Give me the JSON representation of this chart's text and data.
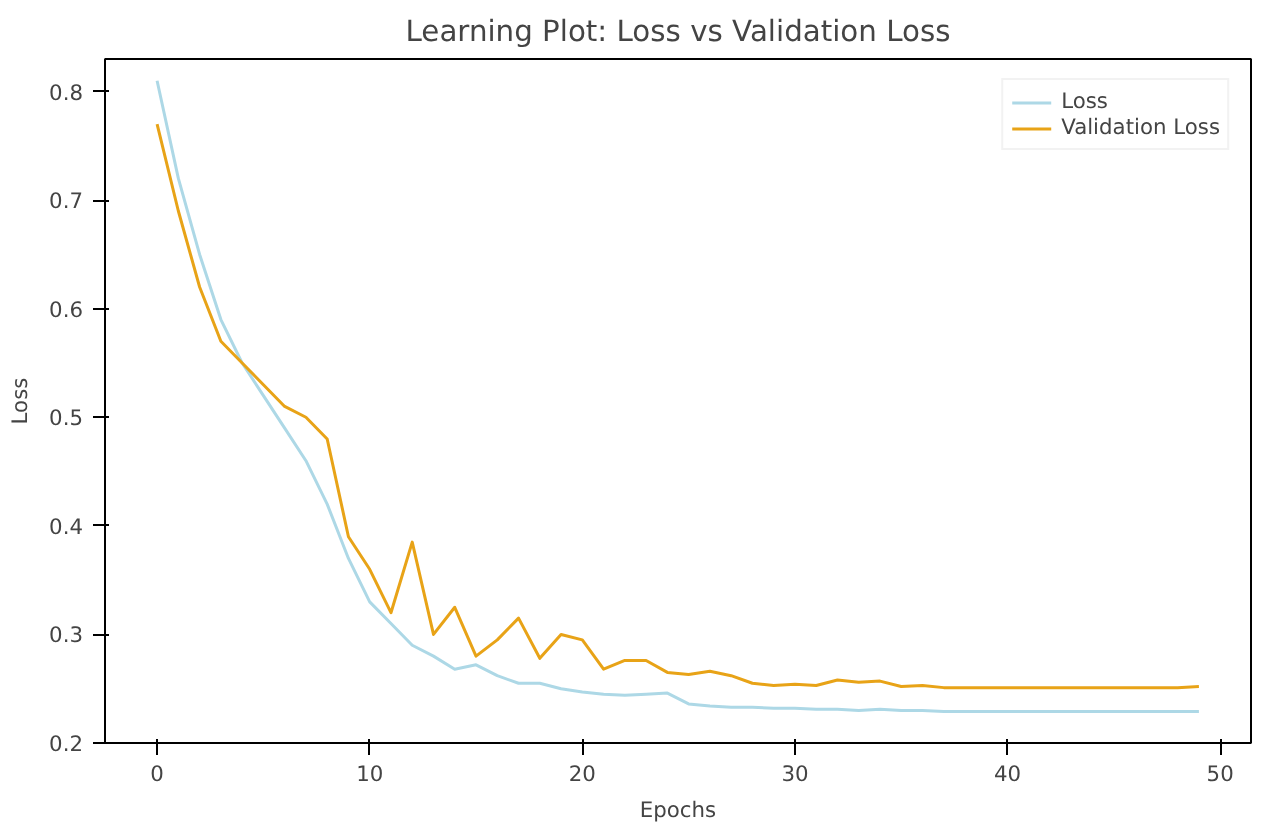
{
  "chart_data": {
    "type": "line",
    "title": "Learning Plot: Loss vs Validation Loss",
    "xlabel": "Epochs",
    "ylabel": "Loss",
    "x": [
      0,
      1,
      2,
      3,
      4,
      5,
      6,
      7,
      8,
      9,
      10,
      11,
      12,
      13,
      14,
      15,
      16,
      17,
      18,
      19,
      20,
      21,
      22,
      23,
      24,
      25,
      26,
      27,
      28,
      29,
      30,
      31,
      32,
      33,
      34,
      35,
      36,
      37,
      38,
      39,
      40,
      41,
      42,
      43,
      44,
      45,
      46,
      47,
      48,
      49
    ],
    "series": [
      {
        "name": "Loss",
        "color": "#add8e6",
        "values": [
          0.81,
          0.72,
          0.65,
          0.59,
          0.55,
          0.52,
          0.49,
          0.46,
          0.42,
          0.37,
          0.33,
          0.31,
          0.29,
          0.28,
          0.268,
          0.272,
          0.262,
          0.255,
          0.255,
          0.25,
          0.247,
          0.245,
          0.244,
          0.245,
          0.246,
          0.236,
          0.234,
          0.233,
          0.233,
          0.232,
          0.232,
          0.231,
          0.231,
          0.23,
          0.231,
          0.23,
          0.23,
          0.229,
          0.229,
          0.229,
          0.229,
          0.229,
          0.229,
          0.229,
          0.229,
          0.229,
          0.229,
          0.229,
          0.229,
          0.229
        ]
      },
      {
        "name": "Validation Loss",
        "color": "#e8a317",
        "values": [
          0.77,
          0.69,
          0.62,
          0.57,
          0.55,
          0.53,
          0.51,
          0.5,
          0.48,
          0.39,
          0.36,
          0.32,
          0.385,
          0.3,
          0.325,
          0.28,
          0.295,
          0.315,
          0.278,
          0.3,
          0.295,
          0.268,
          0.276,
          0.276,
          0.265,
          0.263,
          0.266,
          0.262,
          0.255,
          0.253,
          0.254,
          0.253,
          0.258,
          0.256,
          0.257,
          0.252,
          0.253,
          0.251,
          0.251,
          0.251,
          0.251,
          0.251,
          0.251,
          0.251,
          0.251,
          0.251,
          0.251,
          0.251,
          0.251,
          0.252
        ]
      }
    ],
    "xlim": [
      -2.45,
      51.45
    ],
    "ylim": [
      0.2,
      0.83
    ],
    "xticks": [
      0,
      10,
      20,
      30,
      40,
      50
    ],
    "yticks": [
      0.2,
      0.3,
      0.4,
      0.5,
      0.6,
      0.7,
      0.8
    ],
    "legend": "top right",
    "grid": false,
    "line_style": "solid",
    "marker": "none"
  }
}
